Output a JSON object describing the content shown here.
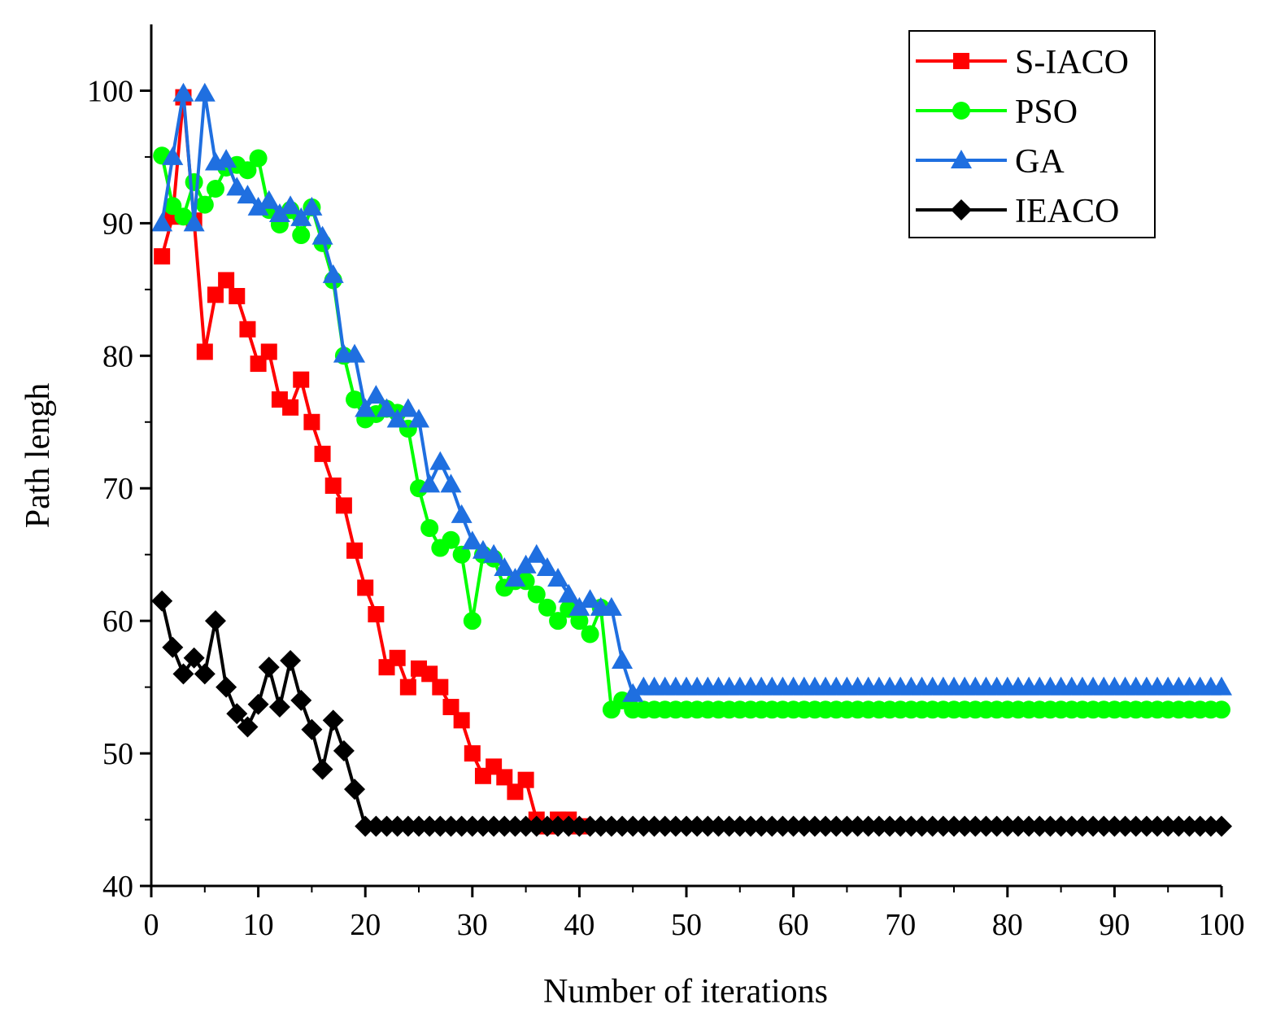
{
  "chart_data": {
    "type": "line",
    "title": "",
    "xlabel": "Number of iterations",
    "ylabel": "Path lengh",
    "xlim": [
      0,
      100
    ],
    "ylim": [
      40,
      105
    ],
    "xticks": [
      0,
      10,
      20,
      30,
      40,
      50,
      60,
      70,
      80,
      90,
      100
    ],
    "yticks": [
      40,
      50,
      60,
      70,
      80,
      90,
      100
    ],
    "grid": false,
    "legend_position": "top-right",
    "series": [
      {
        "name": "S-IACO",
        "color": "#ff0000",
        "marker": "square",
        "x": [
          1,
          2,
          3,
          4,
          5,
          6,
          7,
          8,
          9,
          10,
          11,
          12,
          13,
          14,
          15,
          16,
          17,
          18,
          19,
          20,
          21,
          22,
          23,
          24,
          25,
          26,
          27,
          28,
          29,
          30,
          31,
          32,
          33,
          34,
          35,
          36,
          37,
          38,
          39,
          40
        ],
        "values": [
          87.5,
          90.5,
          99.5,
          90.2,
          80.3,
          84.6,
          85.7,
          84.5,
          82.0,
          79.4,
          80.3,
          76.7,
          76.1,
          78.2,
          75.0,
          72.6,
          70.2,
          68.7,
          65.3,
          62.5,
          60.5,
          56.5,
          57.2,
          55.0,
          56.4,
          56.0,
          55.0,
          53.5,
          52.5,
          50.0,
          48.3,
          49.0,
          48.2,
          47.1,
          48.0,
          45.0,
          44.5,
          45.0,
          45.0,
          44.5
        ]
      },
      {
        "name": "PSO",
        "color": "#00ff00",
        "marker": "circle",
        "x": [
          1,
          2,
          3,
          4,
          5,
          6,
          7,
          8,
          9,
          10,
          11,
          12,
          13,
          14,
          15,
          16,
          17,
          18,
          19,
          20,
          21,
          22,
          23,
          24,
          25,
          26,
          27,
          28,
          29,
          30,
          31,
          32,
          33,
          34,
          35,
          36,
          37,
          38,
          39,
          40,
          41,
          42,
          43,
          44,
          45,
          46,
          47,
          48,
          49,
          50,
          51,
          52,
          53,
          54,
          55,
          56,
          57,
          58,
          59,
          60,
          61,
          62,
          63,
          64,
          65,
          66,
          67,
          68,
          69,
          70,
          71,
          72,
          73,
          74,
          75,
          76,
          77,
          78,
          79,
          80,
          81,
          82,
          83,
          84,
          85,
          86,
          87,
          88,
          89,
          90,
          91,
          92,
          93,
          94,
          95,
          96,
          97,
          98,
          99,
          100
        ],
        "values": [
          95.1,
          91.3,
          90.5,
          93.1,
          91.4,
          92.6,
          94.2,
          94.4,
          94.0,
          94.9,
          91.0,
          89.9,
          91.0,
          89.1,
          91.2,
          88.5,
          85.7,
          80.0,
          76.7,
          75.2,
          75.6,
          76.0,
          75.7,
          74.5,
          70.0,
          67.0,
          65.5,
          66.1,
          65.0,
          60.0,
          65.0,
          64.7,
          62.5,
          63.0,
          63.0,
          62.0,
          61.0,
          60.0,
          60.9,
          60.0,
          59.0,
          61.0,
          53.3,
          54.0,
          53.3,
          53.3,
          53.3,
          53.3,
          53.3,
          53.3,
          53.3,
          53.3,
          53.3,
          53.3,
          53.3,
          53.3,
          53.3,
          53.3,
          53.3,
          53.3,
          53.3,
          53.3,
          53.3,
          53.3,
          53.3,
          53.3,
          53.3,
          53.3,
          53.3,
          53.3,
          53.3,
          53.3,
          53.3,
          53.3,
          53.3,
          53.3,
          53.3,
          53.3,
          53.3,
          53.3,
          53.3,
          53.3,
          53.3,
          53.3,
          53.3,
          53.3,
          53.3,
          53.3,
          53.3,
          53.3,
          53.3,
          53.3,
          53.3,
          53.3,
          53.3,
          53.3,
          53.3,
          53.3,
          53.3,
          53.3
        ]
      },
      {
        "name": "GA",
        "color": "#1f6fe0",
        "marker": "triangle",
        "x": [
          1,
          2,
          3,
          4,
          5,
          6,
          7,
          8,
          9,
          10,
          11,
          12,
          13,
          14,
          15,
          16,
          17,
          18,
          19,
          20,
          21,
          22,
          23,
          24,
          25,
          26,
          27,
          28,
          29,
          30,
          31,
          32,
          33,
          34,
          35,
          36,
          37,
          38,
          39,
          40,
          41,
          42,
          43,
          44,
          45,
          46,
          47,
          48,
          49,
          50,
          51,
          52,
          53,
          54,
          55,
          56,
          57,
          58,
          59,
          60,
          61,
          62,
          63,
          64,
          65,
          66,
          67,
          68,
          69,
          70,
          71,
          72,
          73,
          74,
          75,
          76,
          77,
          78,
          79,
          80,
          81,
          82,
          83,
          84,
          85,
          86,
          87,
          88,
          89,
          90,
          91,
          92,
          93,
          94,
          95,
          96,
          97,
          98,
          99,
          100
        ],
        "values": [
          90.0,
          95.0,
          99.8,
          90.0,
          99.8,
          94.6,
          94.8,
          92.7,
          92.1,
          91.2,
          91.7,
          90.7,
          91.3,
          90.4,
          91.2,
          89.0,
          86.1,
          80.1,
          80.1,
          76.0,
          77.0,
          76.0,
          75.2,
          76.0,
          75.2,
          70.3,
          72.0,
          70.3,
          68.0,
          66.0,
          65.3,
          65.0,
          64.0,
          63.2,
          64.2,
          65.0,
          64.0,
          63.2,
          62.0,
          61.0,
          61.6,
          61.0,
          61.0,
          57.0,
          54.5,
          55.0,
          55.0,
          55.0,
          55.0,
          55.0,
          55.0,
          55.0,
          55.0,
          55.0,
          55.0,
          55.0,
          55.0,
          55.0,
          55.0,
          55.0,
          55.0,
          55.0,
          55.0,
          55.0,
          55.0,
          55.0,
          55.0,
          55.0,
          55.0,
          55.0,
          55.0,
          55.0,
          55.0,
          55.0,
          55.0,
          55.0,
          55.0,
          55.0,
          55.0,
          55.0,
          55.0,
          55.0,
          55.0,
          55.0,
          55.0,
          55.0,
          55.0,
          55.0,
          55.0,
          55.0,
          55.0,
          55.0,
          55.0,
          55.0,
          55.0,
          55.0,
          55.0,
          55.0,
          55.0,
          55.0
        ]
      },
      {
        "name": "IEACO",
        "color": "#000000",
        "marker": "diamond",
        "x": [
          1,
          2,
          3,
          4,
          5,
          6,
          7,
          8,
          9,
          10,
          11,
          12,
          13,
          14,
          15,
          16,
          17,
          18,
          19,
          20,
          21,
          22,
          23,
          24,
          25,
          26,
          27,
          28,
          29,
          30,
          31,
          32,
          33,
          34,
          35,
          36,
          37,
          38,
          39,
          40,
          41,
          42,
          43,
          44,
          45,
          46,
          47,
          48,
          49,
          50,
          51,
          52,
          53,
          54,
          55,
          56,
          57,
          58,
          59,
          60,
          61,
          62,
          63,
          64,
          65,
          66,
          67,
          68,
          69,
          70,
          71,
          72,
          73,
          74,
          75,
          76,
          77,
          78,
          79,
          80,
          81,
          82,
          83,
          84,
          85,
          86,
          87,
          88,
          89,
          90,
          91,
          92,
          93,
          94,
          95,
          96,
          97,
          98,
          99,
          100
        ],
        "values": [
          61.5,
          58.0,
          56.0,
          57.2,
          56.0,
          60.0,
          55.0,
          53.0,
          52.0,
          53.7,
          56.5,
          53.5,
          57.0,
          54.0,
          51.8,
          48.8,
          52.5,
          50.2,
          47.3,
          44.5,
          44.5,
          44.5,
          44.5,
          44.5,
          44.5,
          44.5,
          44.5,
          44.5,
          44.5,
          44.5,
          44.5,
          44.5,
          44.5,
          44.5,
          44.5,
          44.5,
          44.5,
          44.5,
          44.5,
          44.5,
          44.5,
          44.5,
          44.5,
          44.5,
          44.5,
          44.5,
          44.5,
          44.5,
          44.5,
          44.5,
          44.5,
          44.5,
          44.5,
          44.5,
          44.5,
          44.5,
          44.5,
          44.5,
          44.5,
          44.5,
          44.5,
          44.5,
          44.5,
          44.5,
          44.5,
          44.5,
          44.5,
          44.5,
          44.5,
          44.5,
          44.5,
          44.5,
          44.5,
          44.5,
          44.5,
          44.5,
          44.5,
          44.5,
          44.5,
          44.5,
          44.5,
          44.5,
          44.5,
          44.5,
          44.5,
          44.5,
          44.5,
          44.5,
          44.5,
          44.5,
          44.5,
          44.5,
          44.5,
          44.5,
          44.5,
          44.5,
          44.5,
          44.5,
          44.5,
          44.5
        ]
      }
    ]
  }
}
